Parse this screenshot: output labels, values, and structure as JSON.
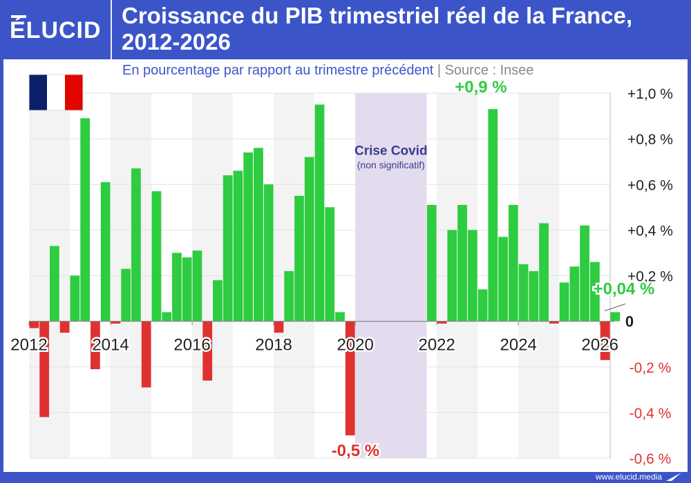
{
  "brand": {
    "logo_text": "ÉLUCID",
    "url": "www.elucid.media"
  },
  "colors": {
    "positive": "#2ecc40",
    "negative": "#e03131",
    "header_bg": "#3b55c9",
    "subtitle": "#3b55c9",
    "source": "#888888",
    "covid_band": "#e3dcef",
    "covid_text": "#3b3b8f",
    "year_band": "#f3f3f3"
  },
  "chart_data": {
    "type": "bar",
    "title": "Croissance du PIB trimestriel réel de la France, 2012-2026",
    "subtitle": "En pourcentage par rapport au trimestre précédent",
    "source": "Source : Insee",
    "flag": "france-flag",
    "ylim": [
      -0.6,
      1.0
    ],
    "y_ticks": [
      {
        "value": 1.0,
        "label": "+1,0 %"
      },
      {
        "value": 0.8,
        "label": "+0,8 %"
      },
      {
        "value": 0.6,
        "label": "+0,6 %"
      },
      {
        "value": 0.4,
        "label": "+0,4 %"
      },
      {
        "value": 0.2,
        "label": "+0,2 %"
      },
      {
        "value": 0.0,
        "label": "0"
      },
      {
        "value": -0.2,
        "label": "-0,2 %"
      },
      {
        "value": -0.4,
        "label": "-0,4 %"
      },
      {
        "value": -0.6,
        "label": "-0,6 %"
      }
    ],
    "x_ticks": [
      "2012",
      "2014",
      "2016",
      "2018",
      "2020",
      "2022",
      "2024",
      "2026"
    ],
    "x_tick_years": [
      2012,
      2014,
      2016,
      2018,
      2020,
      2022,
      2024,
      2026
    ],
    "x_range": [
      2012,
      2026.25
    ],
    "quarters_start": 2012,
    "values": [
      -0.03,
      -0.42,
      0.33,
      -0.05,
      0.2,
      0.89,
      -0.21,
      0.61,
      -0.01,
      0.23,
      0.67,
      -0.29,
      0.57,
      0.04,
      0.3,
      0.28,
      0.31,
      -0.26,
      0.18,
      0.64,
      0.66,
      0.74,
      0.76,
      0.6,
      -0.05,
      0.22,
      0.55,
      0.72,
      0.95,
      0.5,
      0.04,
      -0.5,
      null,
      null,
      null,
      null,
      null,
      null,
      null,
      0.51,
      -0.01,
      0.4,
      0.51,
      0.4,
      0.14,
      0.93,
      0.37,
      0.51,
      0.25,
      0.22,
      0.43,
      -0.01,
      0.17,
      0.24,
      0.42,
      0.26,
      -0.17,
      0.04
    ],
    "covid_band": {
      "from": 2020,
      "to": 2021.75,
      "label": "Crise Covid",
      "sublabel": "(non significatif)"
    },
    "annotations": [
      {
        "text": "+0,9 %",
        "x": 2023.25,
        "y": 0.93,
        "color": "positive"
      },
      {
        "text": "-0,5 %",
        "x": 2019.75,
        "y": -0.5,
        "color": "negative"
      },
      {
        "text": "+0,04 %",
        "x": 2026.25,
        "y": 0.04,
        "color": "positive"
      }
    ]
  }
}
